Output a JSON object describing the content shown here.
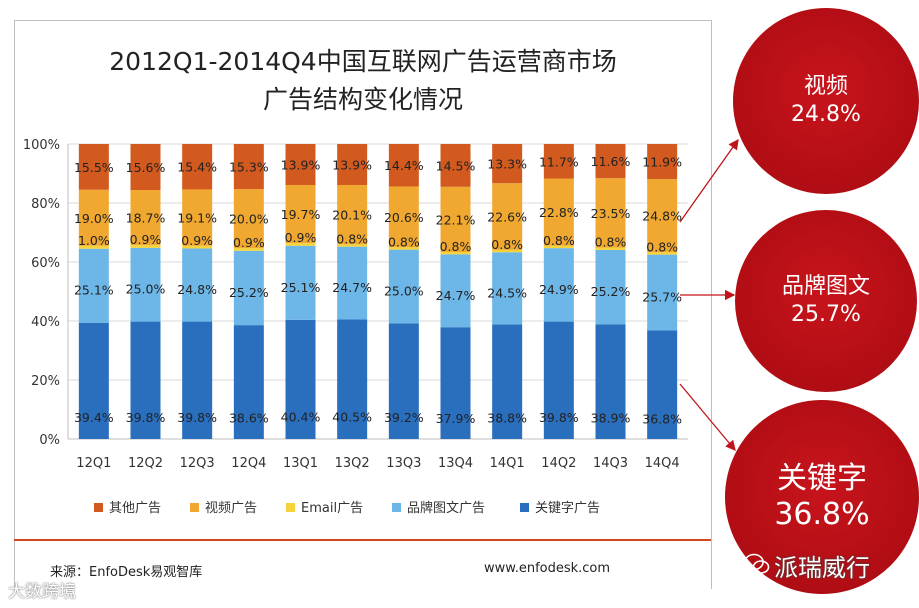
{
  "chart_data": {
    "type": "bar",
    "stacked": true,
    "normalized": true,
    "title_line1": "2012Q1-2014Q4中国互联网广告运营商市场",
    "title_line2": "广告结构变化情况",
    "categories": [
      "12Q1",
      "12Q2",
      "12Q3",
      "12Q4",
      "13Q1",
      "13Q2",
      "13Q3",
      "13Q4",
      "14Q1",
      "14Q2",
      "14Q3",
      "14Q4"
    ],
    "series": [
      {
        "name": "关键字广告",
        "color": "#2a6ebe",
        "values": [
          39.4,
          39.8,
          39.8,
          38.6,
          40.4,
          40.5,
          39.2,
          37.9,
          38.8,
          39.8,
          38.9,
          36.8
        ],
        "labels": [
          "39.4%",
          "39.8%",
          "39.8%",
          "38.6%",
          "40.4%",
          "40.5%",
          "39.2%",
          "37.9%",
          "38.8%",
          "39.8%",
          "38.9%",
          "36.8%"
        ]
      },
      {
        "name": "品牌图文广告",
        "color": "#6cb6e8",
        "values": [
          25.1,
          25.0,
          24.8,
          25.2,
          25.1,
          24.7,
          25.0,
          24.7,
          24.5,
          24.9,
          25.2,
          25.7
        ],
        "labels": [
          "25.1%",
          "25.0%",
          "24.8%",
          "25.2%",
          "25.1%",
          "24.7%",
          "25.0%",
          "24.7%",
          "24.5%",
          "24.9%",
          "25.2%",
          "25.7%"
        ]
      },
      {
        "name": "Email广告",
        "color": "#f5d33a",
        "values": [
          1.0,
          0.9,
          0.9,
          0.9,
          0.9,
          0.8,
          0.8,
          0.8,
          0.8,
          0.8,
          0.8,
          0.8
        ],
        "labels": [
          "1.0%",
          "0.9%",
          "0.9%",
          "0.9%",
          "0.9%",
          "0.8%",
          "0.8%",
          "0.8%",
          "0.8%",
          "0.8%",
          "0.8%",
          "0.8%"
        ]
      },
      {
        "name": "视频广告",
        "color": "#f0a830",
        "values": [
          19.0,
          18.7,
          19.1,
          20.0,
          19.7,
          20.1,
          20.6,
          22.1,
          22.6,
          22.8,
          23.5,
          24.8
        ],
        "labels": [
          "19.0%",
          "18.7%",
          "19.1%",
          "20.0%",
          "19.7%",
          "20.1%",
          "20.6%",
          "22.1%",
          "22.6%",
          "22.8%",
          "23.5%",
          "24.8%"
        ]
      },
      {
        "name": "其他广告",
        "color": "#d25a1e",
        "values": [
          15.5,
          15.6,
          15.4,
          15.3,
          13.9,
          13.9,
          14.4,
          14.5,
          13.3,
          11.7,
          11.6,
          11.9
        ],
        "labels": [
          "15.5%",
          "15.6%",
          "15.4%",
          "15.3%",
          "13.9%",
          "13.9%",
          "14.4%",
          "14.5%",
          "13.3%",
          "11.7%",
          "11.6%",
          "11.9%"
        ]
      }
    ],
    "legend_order": [
      "其他广告",
      "视频广告",
      "Email广告",
      "品牌图文广告",
      "关键字广告"
    ],
    "ylim": [
      0,
      100
    ],
    "yticks": [
      "0%",
      "20%",
      "40%",
      "60%",
      "80%",
      "100%"
    ],
    "ytick_values": [
      0,
      20,
      40,
      60,
      80,
      100
    ],
    "legend_position": "bottom"
  },
  "footer": {
    "source": "来源：EnfoDesk易观智库",
    "site": "www.enfodesk.com"
  },
  "callouts": {
    "video": {
      "label": "视频",
      "value": "24.8%"
    },
    "brand": {
      "label": "品牌图文",
      "value": "25.7%"
    },
    "keyword": {
      "label": "关键字",
      "value": "36.8%"
    }
  },
  "watermarks": {
    "bottom_left": "大数跨境",
    "bottom_right": "派瑞威行"
  },
  "colors": {
    "accent_red": "#b10d14",
    "footer_line": "#d0481c"
  }
}
